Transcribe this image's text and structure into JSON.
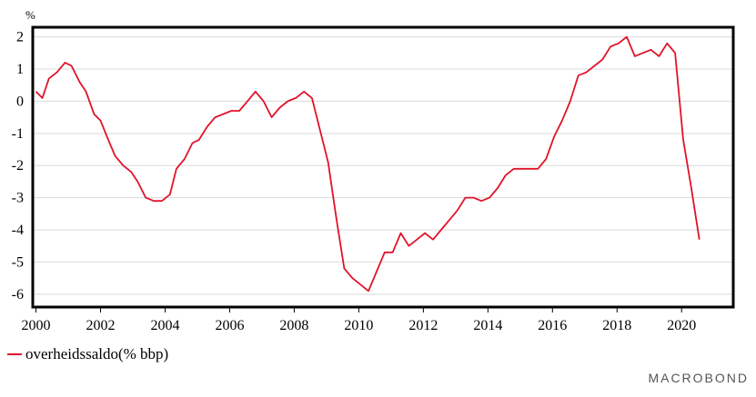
{
  "chart_data": {
    "type": "line",
    "ylabel": "%",
    "ylim": [
      -6.4,
      2.3
    ],
    "xlim": [
      1999.9,
      2021.6
    ],
    "yticks": [
      2,
      1,
      0,
      -1,
      -2,
      -3,
      -4,
      -5,
      -6
    ],
    "ytick_labels": [
      "2",
      "1",
      "0",
      "-1",
      "-2",
      "-3",
      "-4",
      "-5",
      "-6"
    ],
    "xticks": [
      2000,
      2002,
      2004,
      2006,
      2008,
      2010,
      2012,
      2014,
      2016,
      2018,
      2020
    ],
    "xtick_labels": [
      "2000",
      "2002",
      "2004",
      "2006",
      "2008",
      "2010",
      "2012",
      "2014",
      "2016",
      "2018",
      "2020"
    ],
    "grid": true,
    "legend_position": "bottom-left",
    "series": [
      {
        "name": "overheidssaldo(% bbp)",
        "color": "#e0132a",
        "points": [
          [
            2000.0,
            0.3
          ],
          [
            2000.2,
            0.1
          ],
          [
            2000.4,
            0.7
          ],
          [
            2000.65,
            0.9
          ],
          [
            2000.9,
            1.2
          ],
          [
            2001.1,
            1.1
          ],
          [
            2001.35,
            0.6
          ],
          [
            2001.55,
            0.3
          ],
          [
            2001.8,
            -0.4
          ],
          [
            2002.0,
            -0.6
          ],
          [
            2002.2,
            -1.1
          ],
          [
            2002.45,
            -1.7
          ],
          [
            2002.7,
            -2.0
          ],
          [
            2002.95,
            -2.2
          ],
          [
            2003.15,
            -2.5
          ],
          [
            2003.4,
            -3.0
          ],
          [
            2003.65,
            -3.1
          ],
          [
            2003.9,
            -3.1
          ],
          [
            2004.15,
            -2.9
          ],
          [
            2004.35,
            -2.1
          ],
          [
            2004.6,
            -1.8
          ],
          [
            2004.85,
            -1.3
          ],
          [
            2005.05,
            -1.2
          ],
          [
            2005.3,
            -0.8
          ],
          [
            2005.55,
            -0.5
          ],
          [
            2005.8,
            -0.4
          ],
          [
            2006.05,
            -0.3
          ],
          [
            2006.3,
            -0.3
          ],
          [
            2006.55,
            0.0
          ],
          [
            2006.8,
            0.3
          ],
          [
            2007.05,
            0.0
          ],
          [
            2007.3,
            -0.5
          ],
          [
            2007.55,
            -0.2
          ],
          [
            2007.8,
            0.0
          ],
          [
            2008.05,
            0.1
          ],
          [
            2008.3,
            0.3
          ],
          [
            2008.55,
            0.1
          ],
          [
            2008.8,
            -0.9
          ],
          [
            2009.05,
            -1.9
          ],
          [
            2009.3,
            -3.6
          ],
          [
            2009.55,
            -5.2
          ],
          [
            2009.8,
            -5.5
          ],
          [
            2010.05,
            -5.7
          ],
          [
            2010.3,
            -5.9
          ],
          [
            2010.55,
            -5.3
          ],
          [
            2010.8,
            -4.7
          ],
          [
            2011.05,
            -4.7
          ],
          [
            2011.3,
            -4.1
          ],
          [
            2011.55,
            -4.5
          ],
          [
            2011.8,
            -4.3
          ],
          [
            2012.05,
            -4.1
          ],
          [
            2012.3,
            -4.3
          ],
          [
            2012.55,
            -4.0
          ],
          [
            2012.8,
            -3.7
          ],
          [
            2013.05,
            -3.4
          ],
          [
            2013.3,
            -3.0
          ],
          [
            2013.55,
            -3.0
          ],
          [
            2013.8,
            -3.1
          ],
          [
            2014.05,
            -3.0
          ],
          [
            2014.3,
            -2.7
          ],
          [
            2014.55,
            -2.3
          ],
          [
            2014.8,
            -2.1
          ],
          [
            2015.05,
            -2.1
          ],
          [
            2015.3,
            -2.1
          ],
          [
            2015.55,
            -2.1
          ],
          [
            2015.8,
            -1.8
          ],
          [
            2016.05,
            -1.1
          ],
          [
            2016.3,
            -0.6
          ],
          [
            2016.55,
            0.0
          ],
          [
            2016.8,
            0.8
          ],
          [
            2017.05,
            0.9
          ],
          [
            2017.3,
            1.1
          ],
          [
            2017.55,
            1.3
          ],
          [
            2017.8,
            1.7
          ],
          [
            2018.05,
            1.8
          ],
          [
            2018.3,
            2.0
          ],
          [
            2018.55,
            1.4
          ],
          [
            2018.8,
            1.5
          ],
          [
            2019.05,
            1.6
          ],
          [
            2019.3,
            1.4
          ],
          [
            2019.55,
            1.8
          ],
          [
            2019.8,
            1.5
          ],
          [
            2020.05,
            -1.2
          ],
          [
            2020.3,
            -2.7
          ],
          [
            2020.55,
            -4.3
          ]
        ]
      }
    ]
  },
  "legend": {
    "label": "overheidssaldo(% bbp)",
    "color": "#e0132a"
  },
  "brand": "MACROBOND"
}
